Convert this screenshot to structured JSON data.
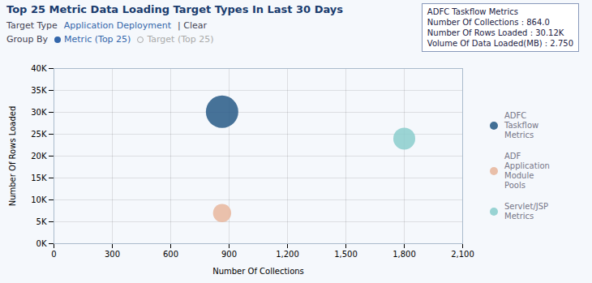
{
  "chart_data": {
    "type": "scatter",
    "title": "Top 25 Metric Data Loading Target Types In Last 30 Days",
    "subtitle": [
      "Target Type",
      "Application Deployment",
      "| Clear"
    ],
    "group_by": {
      "label": "Group By",
      "options": [
        "Metric (Top 25)",
        "Target (Top 25)"
      ]
    },
    "tooltip": {
      "title": "ADFC Taskflow Metrics",
      "lines": [
        "Number Of Collections : 864.0",
        "Number Of Rows Loaded : 30.12K",
        "Volume Of Data Loaded(MB) : 2.750"
      ]
    },
    "xlabel": "Number Of Collections",
    "ylabel": "Number Of Rows Loaded",
    "xlim": [
      0,
      2100
    ],
    "ylim": [
      0,
      40000
    ],
    "xticks": [
      0,
      300,
      600,
      900,
      {
        "value": 1200,
        "label": "1,200"
      },
      {
        "value": 1500,
        "label": "1,500"
      },
      {
        "value": 1800,
        "label": "1,800"
      },
      {
        "value": 2100,
        "label": "2,100"
      }
    ],
    "yticks": [
      {
        "value": 0,
        "label": "0K"
      },
      {
        "value": 5000,
        "label": "5K"
      },
      {
        "value": 10000,
        "label": "10K"
      },
      {
        "value": 15000,
        "label": "15K"
      },
      {
        "value": 20000,
        "label": "20K"
      },
      {
        "value": 25000,
        "label": "25K"
      },
      {
        "value": 30000,
        "label": "30K"
      },
      {
        "value": 35000,
        "label": "35K"
      },
      {
        "value": 40000,
        "label": "40K"
      }
    ],
    "grid": true,
    "legend": "right",
    "series": [
      {
        "name": "ADFC Taskflow Metrics",
        "color": "#2e5f8a",
        "x": [
          864
        ],
        "values": [
          30120
        ],
        "sizes": [
          700
        ]
      },
      {
        "name": "ADF Application Module Pools",
        "color": "#e8b8a0",
        "x": [
          864
        ],
        "values": [
          7000
        ],
        "sizes": [
          220
        ]
      },
      {
        "name": "Servlet/JSP Metrics",
        "color": "#8ecece",
        "x": [
          1800
        ],
        "values": [
          24000
        ],
        "sizes": [
          320
        ]
      }
    ]
  }
}
